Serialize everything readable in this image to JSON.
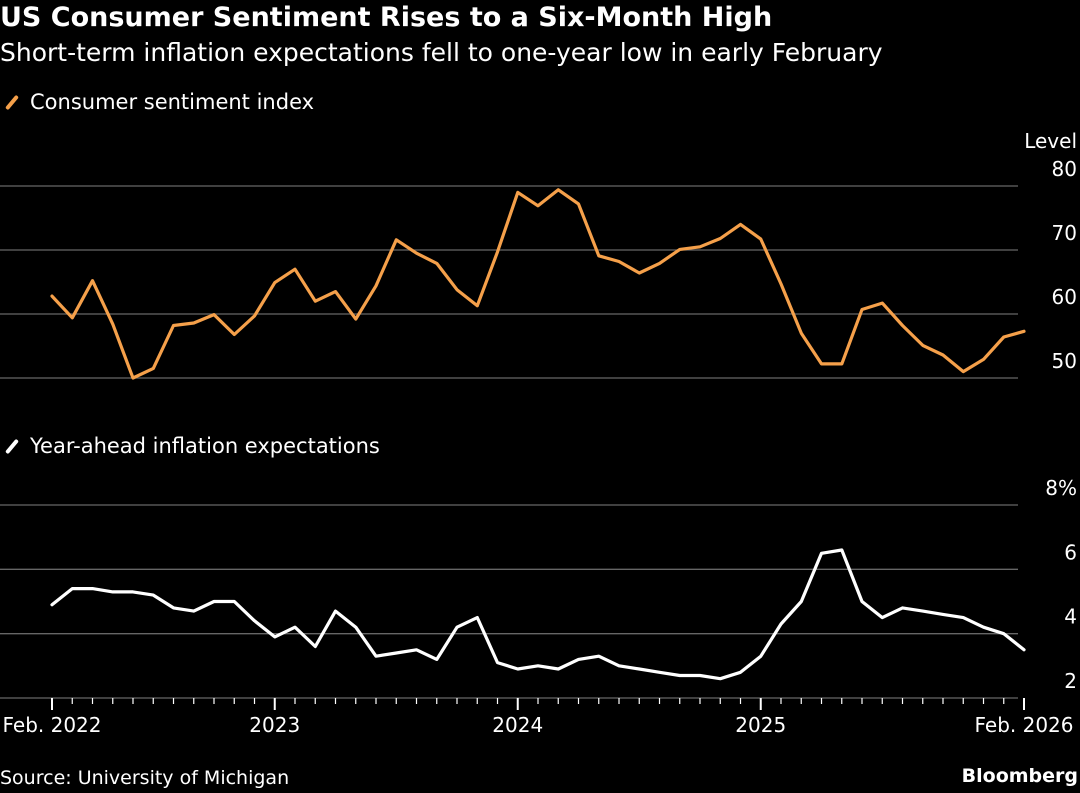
{
  "title": "US Consumer Sentiment Rises to a Six-Month High",
  "subtitle": "Short-term inflation expectations fell to one-year low in early February",
  "source": "Source: University of Michigan",
  "brand": "Bloomberg",
  "colors": {
    "sentiment": "#f5a04a",
    "inflation": "#ffffff",
    "grid": "#666666"
  },
  "chart_data": [
    {
      "type": "line",
      "series": [
        {
          "name": "Consumer sentiment index",
          "color": "#f5a04a"
        }
      ],
      "legend": "Consumer sentiment index",
      "ylabel": "Level",
      "ylim": [
        50,
        80
      ],
      "yticks": [
        {
          "value": 80,
          "label": "80"
        },
        {
          "value": 70,
          "label": "70"
        },
        {
          "value": 60,
          "label": "60"
        },
        {
          "value": 50,
          "label": "50"
        }
      ],
      "grid": true,
      "x": [
        "2022-02",
        "2022-03",
        "2022-04",
        "2022-05",
        "2022-06",
        "2022-07",
        "2022-08",
        "2022-09",
        "2022-10",
        "2022-11",
        "2022-12",
        "2023-01",
        "2023-02",
        "2023-03",
        "2023-04",
        "2023-05",
        "2023-06",
        "2023-07",
        "2023-08",
        "2023-09",
        "2023-10",
        "2023-11",
        "2023-12",
        "2024-01",
        "2024-02",
        "2024-03",
        "2024-04",
        "2024-05",
        "2024-06",
        "2024-07",
        "2024-08",
        "2024-09",
        "2024-10",
        "2024-11",
        "2024-12",
        "2025-01",
        "2025-02",
        "2025-03",
        "2025-04",
        "2025-05",
        "2025-06",
        "2025-07",
        "2025-08",
        "2025-09",
        "2025-10",
        "2025-11",
        "2025-12",
        "2026-01",
        "2026-02"
      ],
      "values": [
        62.8,
        59.4,
        65.2,
        58.4,
        50.0,
        51.5,
        58.2,
        58.6,
        59.9,
        56.8,
        59.7,
        64.9,
        67.0,
        62.0,
        63.5,
        59.2,
        64.4,
        71.6,
        69.5,
        67.9,
        63.8,
        61.3,
        69.7,
        79.0,
        76.9,
        79.4,
        77.2,
        69.1,
        68.2,
        66.4,
        67.9,
        70.1,
        70.5,
        71.8,
        74.0,
        71.7,
        64.7,
        57.0,
        52.2,
        52.2,
        60.7,
        61.7,
        58.2,
        55.1,
        53.6,
        51.0,
        52.9,
        56.4,
        57.3
      ]
    },
    {
      "type": "line",
      "series": [
        {
          "name": "Year-ahead inflation expectations",
          "color": "#ffffff"
        }
      ],
      "legend": "Year-ahead inflation expectations",
      "ylim": [
        2,
        8
      ],
      "yticks": [
        {
          "value": 8,
          "label": "8%"
        },
        {
          "value": 6,
          "label": "6"
        },
        {
          "value": 4,
          "label": "4"
        },
        {
          "value": 2,
          "label": "2"
        }
      ],
      "grid": true,
      "x": [
        "2022-02",
        "2022-03",
        "2022-04",
        "2022-05",
        "2022-06",
        "2022-07",
        "2022-08",
        "2022-09",
        "2022-10",
        "2022-11",
        "2022-12",
        "2023-01",
        "2023-02",
        "2023-03",
        "2023-04",
        "2023-05",
        "2023-06",
        "2023-07",
        "2023-08",
        "2023-09",
        "2023-10",
        "2023-11",
        "2023-12",
        "2024-01",
        "2024-02",
        "2024-03",
        "2024-04",
        "2024-05",
        "2024-06",
        "2024-07",
        "2024-08",
        "2024-09",
        "2024-10",
        "2024-11",
        "2024-12",
        "2025-01",
        "2025-02",
        "2025-03",
        "2025-04",
        "2025-05",
        "2025-06",
        "2025-07",
        "2025-08",
        "2025-09",
        "2025-10",
        "2025-11",
        "2025-12",
        "2026-01",
        "2026-02"
      ],
      "values": [
        4.9,
        5.4,
        5.4,
        5.3,
        5.3,
        5.2,
        4.8,
        4.7,
        5.0,
        5.0,
        4.4,
        3.9,
        4.2,
        3.6,
        4.7,
        4.2,
        3.3,
        3.4,
        3.5,
        3.2,
        4.2,
        4.5,
        3.1,
        2.9,
        3.0,
        2.9,
        3.2,
        3.3,
        3.0,
        2.9,
        2.8,
        2.7,
        2.7,
        2.6,
        2.8,
        3.3,
        4.3,
        5.0,
        6.5,
        6.6,
        5.0,
        4.5,
        4.8,
        4.7,
        4.6,
        4.5,
        4.2,
        4.0,
        3.5
      ]
    }
  ],
  "x_axis": {
    "ticks": [
      {
        "date": "2022-02",
        "label": "Feb. 2022"
      },
      {
        "date": "2023-01",
        "label": "2023"
      },
      {
        "date": "2024-01",
        "label": "2024"
      },
      {
        "date": "2025-01",
        "label": "2025"
      },
      {
        "date": "2026-02",
        "label": "Feb. 2026"
      }
    ],
    "minor_tick_every_months": 1
  }
}
